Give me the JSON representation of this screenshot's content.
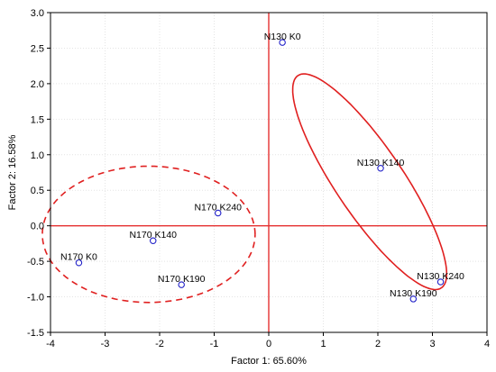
{
  "chart_data": {
    "type": "scatter",
    "title": "",
    "xlabel": "Factor 1: 65.60%",
    "ylabel": "Factor 2: 16.58%",
    "xlim": [
      -4,
      4
    ],
    "ylim": [
      -1.5,
      3.0
    ],
    "x_ticks": [
      -4,
      -3,
      -2,
      -1,
      0,
      1,
      2,
      3,
      4
    ],
    "y_ticks": [
      -1.5,
      -1.0,
      -0.5,
      0.0,
      0.5,
      1.0,
      1.5,
      2.0,
      2.5,
      3.0
    ],
    "x_tick_labels": [
      "-4",
      "-3",
      "-2",
      "-1",
      "0",
      "1",
      "2",
      "3",
      "4"
    ],
    "y_tick_labels": [
      "-1.5",
      "-1.0",
      "-0.5",
      "0.0",
      "0.5",
      "1.0",
      "1.5",
      "2.0",
      "2.5",
      "3.0"
    ],
    "grid": true,
    "reference_lines": {
      "x": 0,
      "y": 0,
      "color": "#e53030"
    },
    "marker_color": "#2020c8",
    "points": [
      {
        "label": "N130 K0",
        "x": 0.25,
        "y": 2.58
      },
      {
        "label": "N130 K140",
        "x": 2.05,
        "y": 0.81
      },
      {
        "label": "N130 K240",
        "x": 3.15,
        "y": -0.79
      },
      {
        "label": "N130 K190",
        "x": 2.65,
        "y": -1.03
      },
      {
        "label": "N170 K240",
        "x": -0.93,
        "y": 0.18
      },
      {
        "label": "N170 K140",
        "x": -2.12,
        "y": -0.21
      },
      {
        "label": "N170 K0",
        "x": -3.48,
        "y": -0.52
      },
      {
        "label": "N170 K190",
        "x": -1.6,
        "y": -0.83
      }
    ],
    "ellipses": [
      {
        "group": "N130",
        "cx": 1.85,
        "cy": 0.62,
        "rx": 2.35,
        "ry": 0.62,
        "angle_deg": -56,
        "style": "solid",
        "color": "#e02020"
      },
      {
        "group": "N170",
        "cx": -2.2,
        "cy": -0.12,
        "rx": 1.95,
        "ry": 1.25,
        "angle_deg": 0,
        "style": "dashed",
        "color": "#e02020"
      }
    ]
  }
}
